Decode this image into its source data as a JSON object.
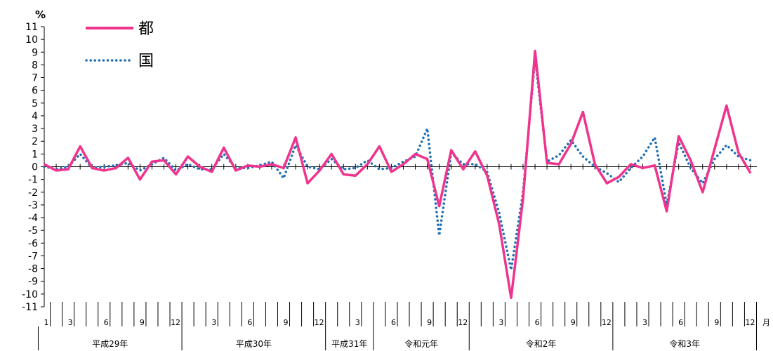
{
  "chart_data": {
    "type": "line",
    "ylabel": "%",
    "xunit": "月",
    "ylim": [
      -11,
      11
    ],
    "yticks": [
      11,
      10,
      9,
      8,
      7,
      6,
      5,
      4,
      3,
      2,
      1,
      0,
      -1,
      -2,
      -3,
      -4,
      -5,
      -6,
      -7,
      -8,
      -9,
      -10,
      -11
    ],
    "month_labels": [
      "1",
      "3",
      "6",
      "9",
      "12",
      "3",
      "6",
      "9",
      "12",
      "3",
      "6",
      "9",
      "12",
      "3",
      "6",
      "9",
      "12",
      "3",
      "6",
      "9",
      "12"
    ],
    "month_label_index": [
      0,
      2,
      5,
      8,
      11,
      14,
      17,
      20,
      23,
      26,
      29,
      32,
      35,
      38,
      41,
      44,
      47,
      50,
      53,
      56,
      59
    ],
    "years": [
      {
        "label": "平成29年",
        "start": 0,
        "end": 12
      },
      {
        "label": "平成30年",
        "start": 12,
        "end": 24
      },
      {
        "label": "平成31年",
        "start": 24,
        "end": 28
      },
      {
        "label": "令和元年",
        "start": 28,
        "end": 36
      },
      {
        "label": "令和2年",
        "start": 36,
        "end": 48
      },
      {
        "label": "令和3年",
        "start": 48,
        "end": 60
      }
    ],
    "legend": [
      {
        "name": "都",
        "color": "#f0338c",
        "style": "solid"
      },
      {
        "name": "国",
        "color": "#1f6fb5",
        "style": "dotted"
      }
    ],
    "legend_position": "top-left",
    "series": [
      {
        "name": "都",
        "color": "#f0338c",
        "values": [
          0.2,
          -0.3,
          -0.2,
          1.6,
          -0.1,
          -0.3,
          -0.1,
          0.7,
          -1.0,
          0.4,
          0.5,
          -0.6,
          0.8,
          0.0,
          -0.4,
          1.5,
          -0.3,
          0.1,
          0.0,
          0.2,
          -0.1,
          2.3,
          -1.3,
          -0.3,
          1.0,
          -0.6,
          -0.7,
          0.2,
          1.6,
          -0.4,
          0.2,
          1.0,
          0.6,
          -3.1,
          1.3,
          -0.2,
          1.2,
          -0.7,
          -4.5,
          -10.3,
          -2.5,
          9.1,
          0.3,
          0.2,
          1.8,
          4.3,
          0.2,
          -1.3,
          -0.8,
          0.2,
          -0.1,
          0.1,
          -3.5,
          2.4,
          0.5,
          -2.0,
          1.4,
          4.8,
          1.1,
          -0.5
        ]
      },
      {
        "name": "国",
        "color": "#1f6fb5",
        "values": [
          0.0,
          -0.2,
          0.0,
          1.0,
          -0.1,
          0.0,
          0.1,
          0.3,
          -0.3,
          0.2,
          0.7,
          -0.3,
          0.2,
          -0.2,
          -0.2,
          1.0,
          -0.1,
          -0.1,
          0.1,
          0.4,
          -0.9,
          1.7,
          0.0,
          -0.2,
          0.6,
          -0.2,
          -0.1,
          0.5,
          -0.2,
          -0.1,
          0.4,
          0.8,
          3.0,
          -5.4,
          1.1,
          0.2,
          0.2,
          -0.4,
          -3.6,
          -8.1,
          -2.0,
          8.5,
          0.4,
          0.9,
          2.1,
          0.8,
          0.0,
          -0.5,
          -1.2,
          -0.1,
          0.8,
          2.3,
          -3.0,
          1.9,
          -0.1,
          -1.3,
          0.6,
          1.7,
          0.8,
          0.5
        ]
      }
    ]
  }
}
